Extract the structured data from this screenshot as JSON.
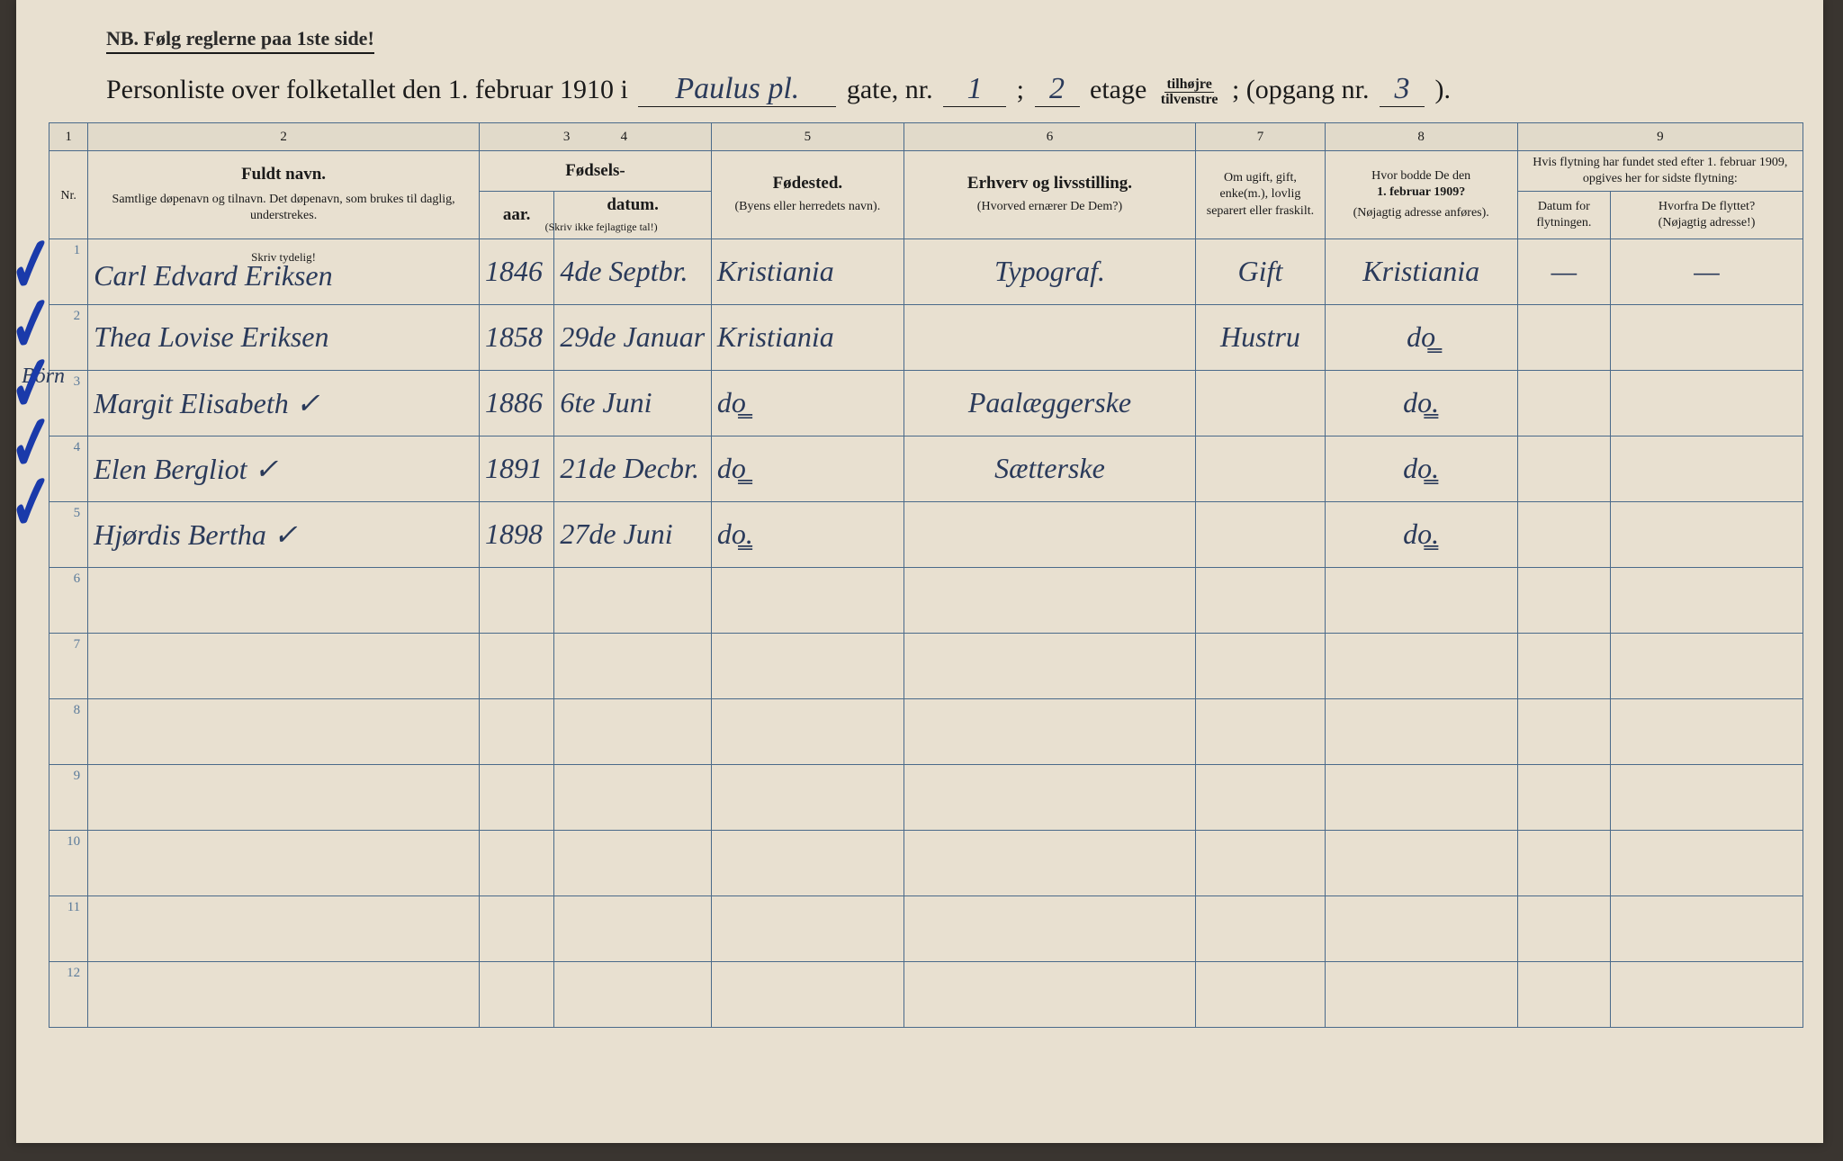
{
  "nb": "NB.  Følg reglerne paa 1ste side!",
  "title": {
    "pre": "Personliste over folketallet den 1. februar 1910 i",
    "street_hand": "Paulus pl.",
    "gate": "gate, nr.",
    "nr_hand": "1",
    "semi": ";",
    "etage_hand": "2",
    "etage": "etage",
    "frac_top": "tilhøjre",
    "frac_bot": "tilvenstre",
    "opgang": "; (opgang nr.",
    "opgang_hand": "3",
    "end": ")."
  },
  "colnums": [
    "1",
    "2",
    "3",
    "4",
    "5",
    "6",
    "7",
    "8",
    "9"
  ],
  "headers": {
    "navn_main": "Fuldt navn.",
    "navn_sub": "Samtlige døpenavn og tilnavn. Det døpenavn, som brukes til daglig, understrekes.",
    "fodsels": "Fødsels-",
    "aar": "aar.",
    "datum": "datum.",
    "skriv_ikke": "(Skriv ikke fejlagtige tal!)",
    "fodested_main": "Fødested.",
    "fodested_sub": "(Byens eller herredets navn).",
    "erhverv_main": "Erhverv og livsstilling.",
    "erhverv_sub": "(Hvorved ernærer De Dem?)",
    "ugift": "Om ugift, gift, enke(m.), lovlig separert eller fraskilt.",
    "hvor_main": "Hvor bodde De den",
    "hvor_date": "1. februar 1909?",
    "hvor_sub": "(Nøjagtig adresse anføres).",
    "flyt_top": "Hvis flytning har fundet sted efter 1. februar 1909, opgives her for sidste flytning:",
    "flyt_datum": "Datum for flytningen.",
    "flyt_hvorfra": "Hvorfra De flyttet?",
    "flyt_hvorfra_sub": "(Nøjagtig adresse!)",
    "skriv_tydelig": "Skriv tydelig!"
  },
  "margin": "Börn",
  "rows": [
    {
      "n": "1",
      "name": "Carl Edvard Eriksen",
      "aar": "1846",
      "dat": "4de Septbr.",
      "sted": "Kristiania",
      "erhv": "Typograf.",
      "stat": "Gift",
      "bod": "Kristiania",
      "d9a": "—",
      "d9b": "—"
    },
    {
      "n": "2",
      "name": "Thea Lovise Eriksen",
      "aar": "1858",
      "dat": "29de Januar",
      "sted": "Kristiania",
      "erhv": "",
      "stat": "Hustru",
      "bod": "do͇",
      "d9a": "",
      "d9b": ""
    },
    {
      "n": "3",
      "name": "Margit Elisabeth       ✓",
      "aar": "1886",
      "dat": "6te Juni",
      "sted": "do͇",
      "erhv": "Paalæggerske",
      "stat": "",
      "bod": "do͇.",
      "d9a": "",
      "d9b": ""
    },
    {
      "n": "4",
      "name": "Elen Bergliot          ✓",
      "aar": "1891",
      "dat": "21de Decbr.",
      "sted": "do͇",
      "erhv": "Sætterske",
      "stat": "",
      "bod": "do͇.",
      "d9a": "",
      "d9b": ""
    },
    {
      "n": "5",
      "name": "Hjørdis Bertha         ✓",
      "aar": "1898",
      "dat": "27de Juni",
      "sted": "do͇.",
      "erhv": "",
      "stat": "",
      "bod": "do͇.",
      "d9a": "",
      "d9b": ""
    },
    {
      "n": "6"
    },
    {
      "n": "7"
    },
    {
      "n": "8"
    },
    {
      "n": "9"
    },
    {
      "n": "10"
    },
    {
      "n": "11"
    },
    {
      "n": "12"
    }
  ]
}
